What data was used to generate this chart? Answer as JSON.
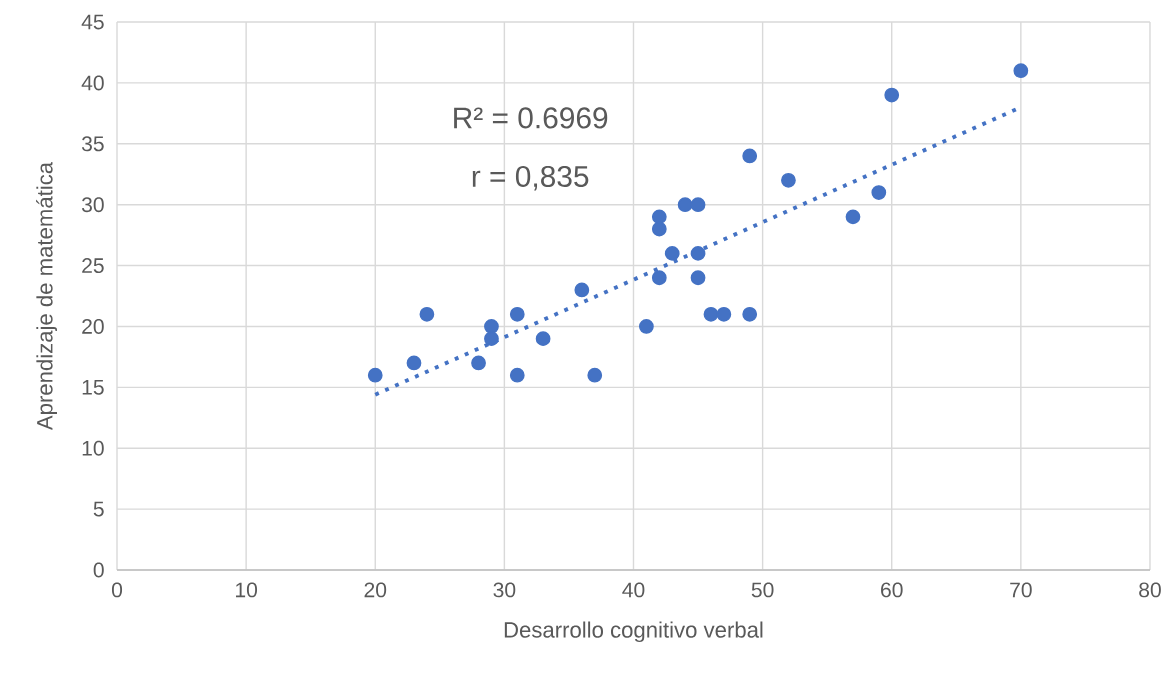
{
  "chart_data": {
    "type": "scatter",
    "xlabel": "Desarrollo cognitivo verbal",
    "ylabel": "Aprendizaje de matemática",
    "xlim": [
      0,
      80
    ],
    "ylim": [
      0,
      45
    ],
    "xticks": [
      0,
      10,
      20,
      30,
      40,
      50,
      60,
      70,
      80
    ],
    "yticks": [
      0,
      5,
      10,
      15,
      20,
      25,
      30,
      35,
      40,
      45
    ],
    "grid": true,
    "marker": "circle",
    "annotations": [
      "R² = 0.6969",
      "r = 0,835"
    ],
    "series": [
      {
        "color": "#4472c4",
        "x": [
          20,
          23,
          24,
          28,
          29,
          29,
          31,
          31,
          33,
          36,
          37,
          41,
          42,
          42,
          42,
          43,
          44,
          45,
          45,
          45,
          46,
          47,
          49,
          49,
          52,
          57,
          59,
          60,
          70
        ],
        "values": [
          16,
          17,
          21,
          17,
          20,
          19,
          21,
          16,
          19,
          23,
          16,
          20,
          29,
          28,
          24,
          26,
          30,
          30,
          26,
          24,
          21,
          21,
          34,
          21,
          32,
          29,
          31,
          39,
          41
        ]
      },
      {
        "type": "line",
        "line_style": "dotted",
        "marker": "none",
        "color": "#4472c4",
        "x": [
          20,
          70
        ],
        "values": [
          14.4,
          38.0
        ]
      }
    ]
  }
}
